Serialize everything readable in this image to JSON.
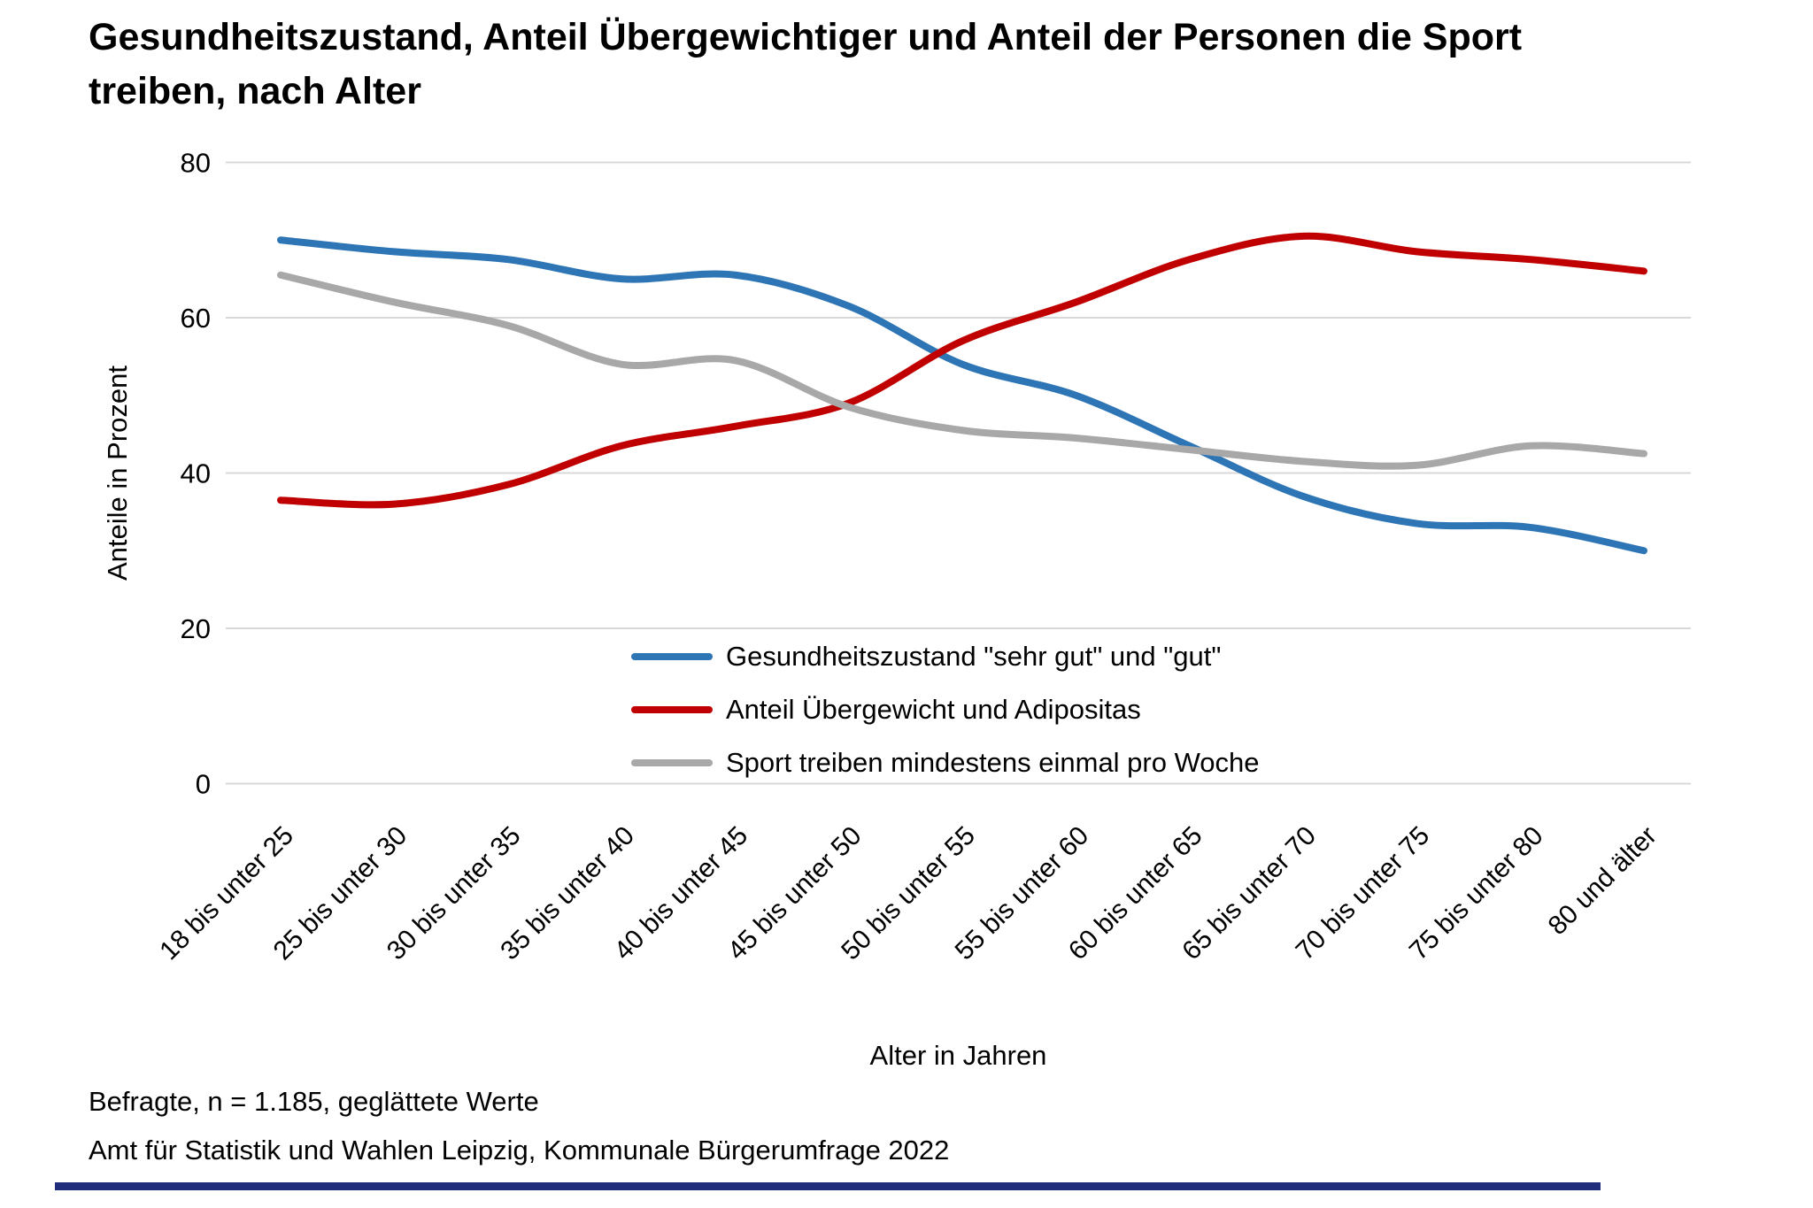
{
  "title_lines": [
    "Gesundheitszustand, Anteil Übergewichtiger und Anteil der Personen die Sport",
    "treiben, nach Alter"
  ],
  "chart_data": {
    "type": "line",
    "categories": [
      "18 bis unter 25",
      "25 bis unter 30",
      "30 bis unter 35",
      "35 bis unter 40",
      "40 bis unter 45",
      "45 bis unter 50",
      "50 bis unter 55",
      "55 bis unter 60",
      "60 bis unter 65",
      "65 bis unter 70",
      "70 bis unter 75",
      "75 bis unter 80",
      "80 und älter"
    ],
    "series": [
      {
        "name": "Gesundheitszustand \"sehr gut\" und \"gut\"",
        "color": "#2E75B6",
        "values": [
          70,
          68.5,
          67.5,
          65,
          65.5,
          61.5,
          54,
          50,
          43.5,
          37,
          33.5,
          33,
          30
        ]
      },
      {
        "name": "Anteil Übergewicht und Adipositas",
        "color": "#C00000",
        "values": [
          36.5,
          36,
          38.5,
          43.5,
          46,
          49,
          57,
          62,
          67.5,
          70.5,
          68.5,
          67.5,
          66
        ]
      },
      {
        "name": "Sport treiben mindestens einmal pro Woche",
        "color": "#A8A8A8",
        "values": [
          65.5,
          62,
          59,
          54,
          54.5,
          48.5,
          45.5,
          44.5,
          43,
          41.5,
          41,
          43.5,
          42.5
        ]
      }
    ],
    "xlabel": "Alter in Jahren",
    "ylabel": "Anteile in Prozent",
    "ylim": [
      0,
      80
    ],
    "yticks": [
      0,
      20,
      40,
      60,
      80
    ],
    "grid": true,
    "legend_position": "inside-lower-center"
  },
  "footer": {
    "line1": "Befragte, n = 1.185, geglättete Werte",
    "line2": "Amt für Statistik und Wahlen Leipzig, Kommunale Bürgerumfrage 2022"
  },
  "colors": {
    "grid": "#D8D8D8",
    "axis_text": "#000000",
    "bottom_rule": "#202D7D"
  }
}
